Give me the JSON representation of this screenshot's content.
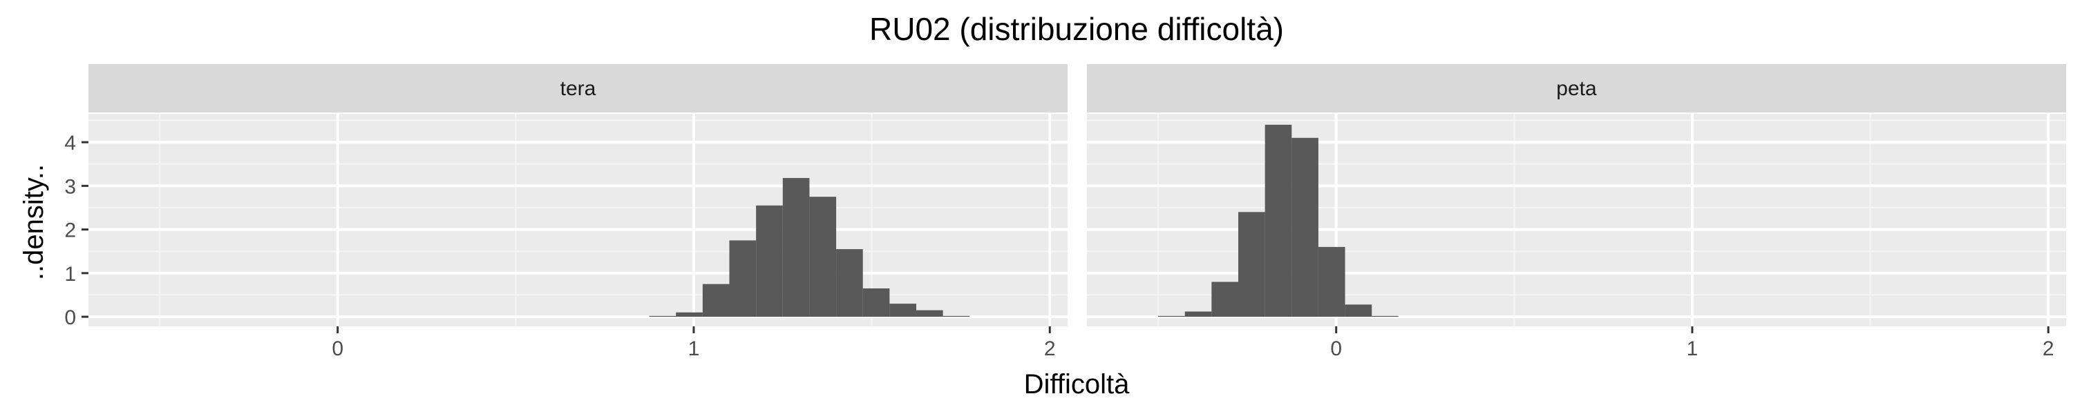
{
  "chart_data": {
    "type": "bar",
    "title": "RU02 (distribuzione difficoltà)",
    "xlabel": "Difficoltà",
    "ylabel": "..density..",
    "xlim": [
      -0.7,
      2.05
    ],
    "ylim": [
      -0.22,
      4.65
    ],
    "x_ticks": [
      0,
      1,
      2
    ],
    "y_ticks": [
      0,
      1,
      2,
      3,
      4
    ],
    "grid": true,
    "bin_width": 0.075,
    "colors": {
      "bar": "#595959",
      "panel_bg": "#ebebeb",
      "strip_bg": "#d9d9d9",
      "grid_major": "#ffffff",
      "grid_minor": "#f5f5f5"
    },
    "panels": [
      {
        "label": "tera",
        "bins": [
          {
            "x0": 0.875,
            "x1": 0.95,
            "density": 0.02
          },
          {
            "x0": 0.95,
            "x1": 1.025,
            "density": 0.1
          },
          {
            "x0": 1.025,
            "x1": 1.1,
            "density": 0.75
          },
          {
            "x0": 1.1,
            "x1": 1.175,
            "density": 1.75
          },
          {
            "x0": 1.175,
            "x1": 1.25,
            "density": 2.55
          },
          {
            "x0": 1.25,
            "x1": 1.325,
            "density": 3.18
          },
          {
            "x0": 1.325,
            "x1": 1.4,
            "density": 2.75
          },
          {
            "x0": 1.4,
            "x1": 1.475,
            "density": 1.55
          },
          {
            "x0": 1.475,
            "x1": 1.55,
            "density": 0.65
          },
          {
            "x0": 1.55,
            "x1": 1.625,
            "density": 0.3
          },
          {
            "x0": 1.625,
            "x1": 1.7,
            "density": 0.15
          },
          {
            "x0": 1.7,
            "x1": 1.775,
            "density": 0.02
          }
        ]
      },
      {
        "label": "peta",
        "bins": [
          {
            "x0": -0.5,
            "x1": -0.425,
            "density": 0.02
          },
          {
            "x0": -0.425,
            "x1": -0.35,
            "density": 0.12
          },
          {
            "x0": -0.35,
            "x1": -0.275,
            "density": 0.8
          },
          {
            "x0": -0.275,
            "x1": -0.2,
            "density": 2.4
          },
          {
            "x0": -0.2,
            "x1": -0.125,
            "density": 4.4
          },
          {
            "x0": -0.125,
            "x1": -0.05,
            "density": 4.1
          },
          {
            "x0": -0.05,
            "x1": 0.025,
            "density": 1.6
          },
          {
            "x0": 0.025,
            "x1": 0.1,
            "density": 0.28
          },
          {
            "x0": 0.1,
            "x1": 0.175,
            "density": 0.02
          }
        ]
      }
    ]
  }
}
